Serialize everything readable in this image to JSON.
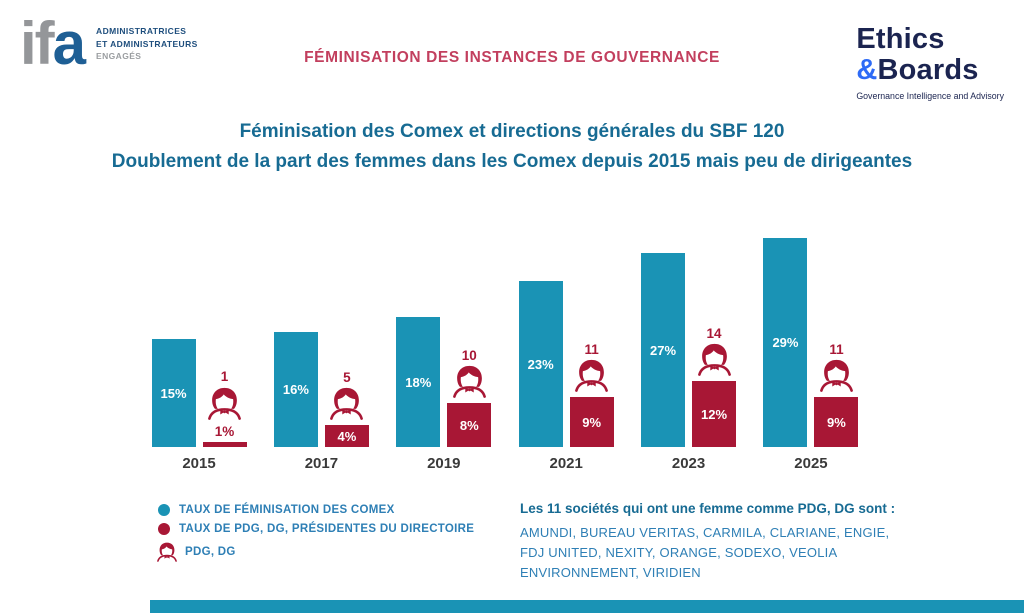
{
  "header": {
    "ifa_logo": {
      "word_gray": "if",
      "word_blue": "a",
      "tagline_line1": "ADMINISTRATRICES",
      "tagline_line2": "ET ADMINISTRATEURS",
      "tagline_line3": "ENGAGÉS"
    },
    "page_title": "FÉMINISATION DES INSTANCES DE GOUVERNANCE",
    "eb_logo": {
      "line1": "Ethics",
      "amp": "&",
      "line2": "Boards",
      "tagline": "Governance Intelligence and Advisory"
    }
  },
  "chart_data": {
    "type": "bar",
    "title": "Féminisation des Comex et directions générales du SBF 120",
    "subtitle": "Doublement de la part des femmes dans les Comex depuis 2015 mais peu de dirigeantes",
    "categories": [
      "2015",
      "2017",
      "2019",
      "2021",
      "2023",
      "2025"
    ],
    "series": [
      {
        "name": "TAUX DE FÉMINISATION DES COMEX",
        "color": "#1a93b5",
        "unit": "%",
        "values": [
          15,
          16,
          18,
          23,
          27,
          29
        ]
      },
      {
        "name": "TAUX DE PDG, DG, PRÉSIDENTES DU DIRECTOIRE",
        "color": "#a81735",
        "unit": "%",
        "values": [
          1,
          4,
          8,
          9,
          12,
          9
        ]
      },
      {
        "name": "PDG, DG",
        "color": "#a81735",
        "unit": "count",
        "values": [
          1,
          5,
          10,
          11,
          14,
          11
        ]
      }
    ],
    "grid": false,
    "legend_position": "bottom-left",
    "ylim": [
      0,
      30
    ]
  },
  "footnote": {
    "heading": "Les 11 sociétés qui ont une femme comme PDG, DG sont :",
    "companies": "AMUNDI, BUREAU VERITAS, CARMILA, CLARIANE, ENGIE, FDJ UNITED, NEXITY, ORANGE, SODEXO, VEOLIA ENVIRONNEMENT, VIRIDIEN"
  },
  "colors": {
    "teal": "#1a93b5",
    "crimson": "#a81735",
    "title_blue": "#176b93",
    "text_blue": "#2e7fb5",
    "header_red": "#c23f5e",
    "navy": "#1b2450",
    "amp_blue": "#2e6bf6",
    "logo_gray": "#949699"
  }
}
